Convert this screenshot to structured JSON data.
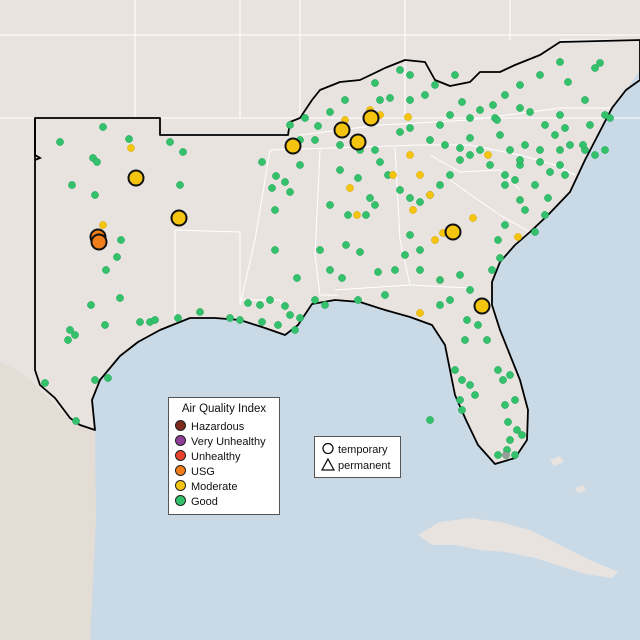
{
  "aqi_legend": {
    "title": "Air Quality Index",
    "items": [
      {
        "label": "Hazardous",
        "color": "#7e2b1e"
      },
      {
        "label": "Very Unhealthy",
        "color": "#8f3f97"
      },
      {
        "label": "Unhealthy",
        "color": "#e8412c"
      },
      {
        "label": "USG",
        "color": "#ee7d1a"
      },
      {
        "label": "Moderate",
        "color": "#f5c40f"
      },
      {
        "label": "Good",
        "color": "#33c26b"
      }
    ]
  },
  "site_legend": {
    "items": [
      {
        "label": "temporary",
        "shape": "circle"
      },
      {
        "label": "permanent",
        "shape": "triangle"
      }
    ]
  },
  "colors": {
    "water": "#c9d9e6",
    "land": "#e8e3df",
    "state_border": "#ffffff",
    "region_outline": "#000000"
  }
}
